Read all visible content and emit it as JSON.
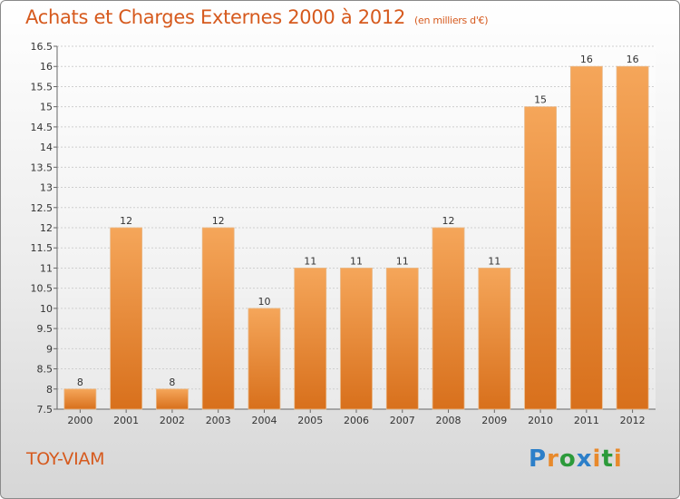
{
  "title": "Achats et Charges Externes 2000 à 2012",
  "unit": "(en milliers d'€)",
  "entity": "TOY-VIAM",
  "logo": {
    "letters": [
      "P",
      "r",
      "o",
      "x",
      "i",
      "t",
      "i"
    ],
    "colors": [
      "#2c7fc9",
      "#e8892b",
      "#2c9a3a",
      "#2c7fc9",
      "#e8892b",
      "#2c9a3a",
      "#e8892b"
    ]
  },
  "colors": {
    "bar": "#ec8a33",
    "bar_light": "#f5a65a",
    "bar_dark": "#d8701c",
    "title": "#d65a1e"
  },
  "chart_data": {
    "type": "bar",
    "categories": [
      "2000",
      "2001",
      "2002",
      "2003",
      "2004",
      "2005",
      "2006",
      "2007",
      "2008",
      "2009",
      "2010",
      "2011",
      "2012"
    ],
    "values": [
      8,
      12,
      8,
      12,
      10,
      11,
      11,
      11,
      12,
      11,
      15,
      16,
      16
    ],
    "value_labels": [
      "8",
      "12",
      "8",
      "12",
      "10",
      "11",
      "11",
      "11",
      "12",
      "11",
      "15",
      "16",
      "16"
    ],
    "ylim": [
      7.5,
      16.5
    ],
    "yticks": [
      "7.5",
      "8",
      "8.5",
      "9",
      "9.5",
      "10",
      "10.5",
      "11",
      "11.5",
      "12",
      "12.5",
      "13",
      "13.5",
      "14",
      "14.5",
      "15",
      "15.5",
      "16",
      "16.5"
    ],
    "grid": true
  }
}
